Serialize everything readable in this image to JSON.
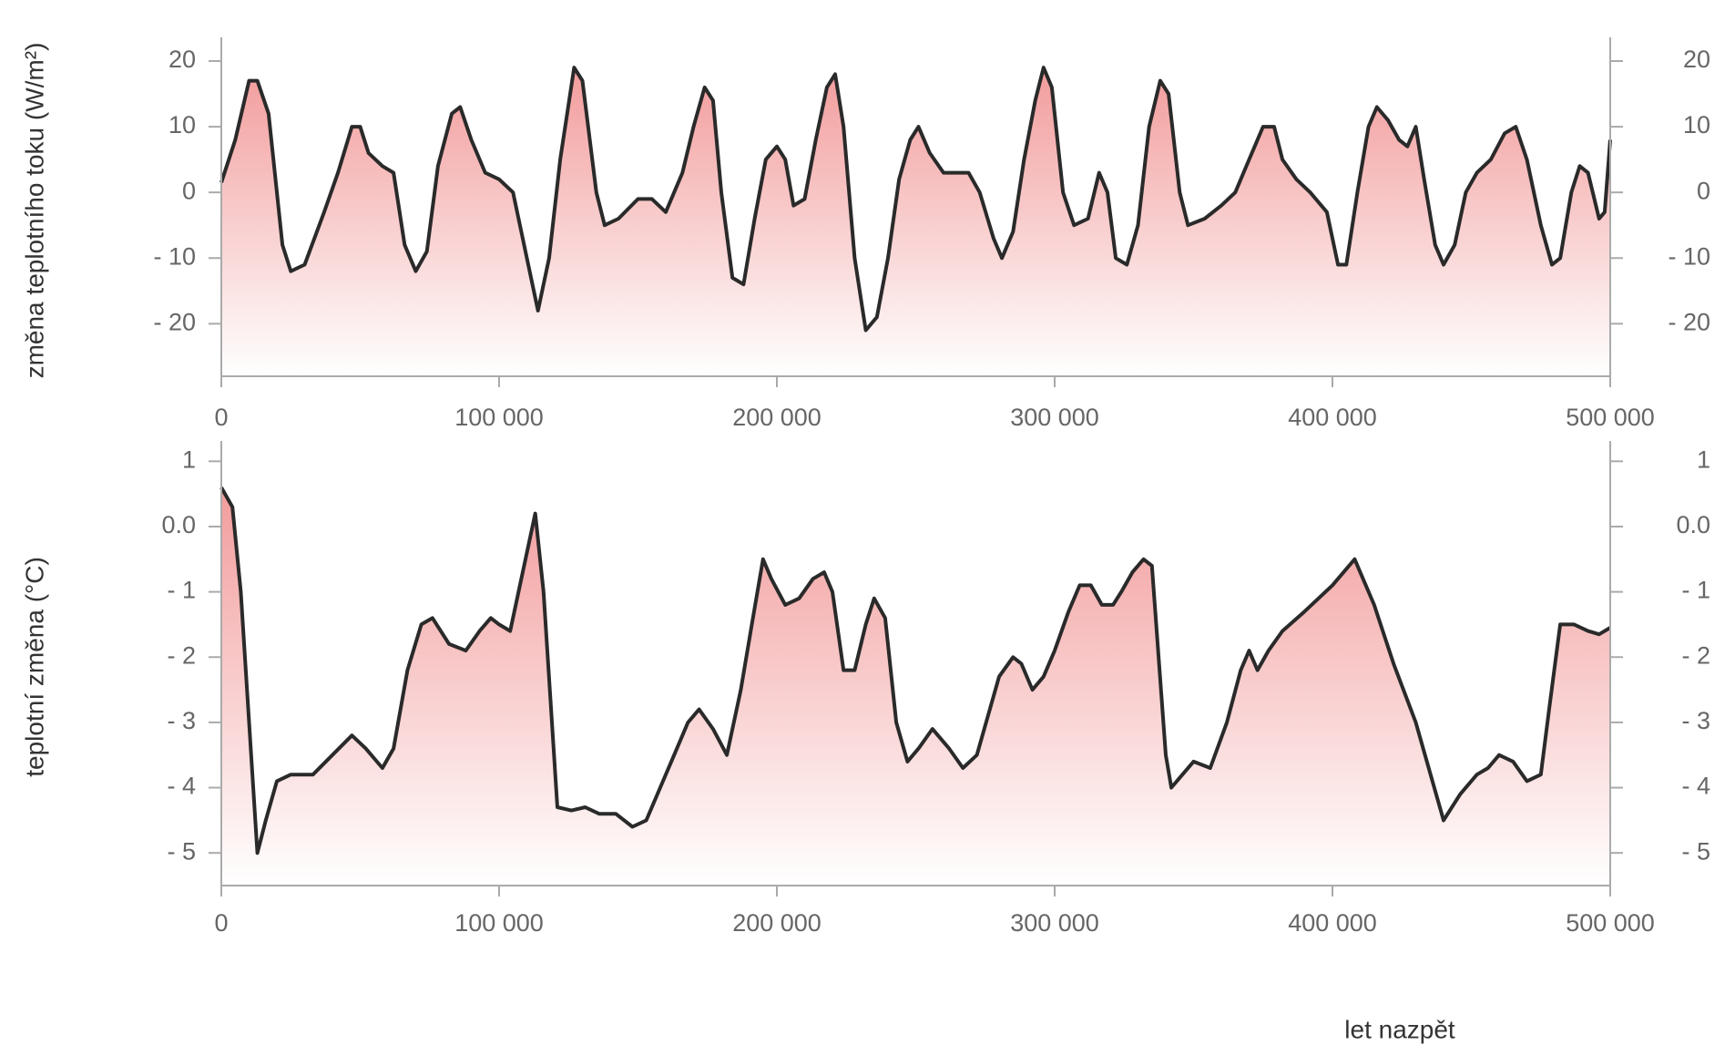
{
  "chart_data": [
    {
      "type": "line",
      "ylabel": "změna teplotního toku (W/m²)",
      "xlim": [
        0,
        500000
      ],
      "ylim": [
        -28,
        22.5
      ],
      "xticks": [
        0,
        {
          "value": 100000,
          "label": "100 000"
        },
        {
          "value": 200000,
          "label": "200 000"
        },
        {
          "value": 300000,
          "label": "300 000"
        },
        {
          "value": 400000,
          "label": "400 000"
        },
        {
          "value": 500000,
          "label": "500 000"
        }
      ],
      "yticks": [
        20,
        10,
        0,
        {
          "value": -10,
          "label": "- 10"
        },
        {
          "value": -20,
          "label": "- 20"
        }
      ],
      "fill_color": "#f08a8a",
      "series": [
        {
          "color": "#2a2a2a",
          "x": [
            0,
            5000,
            10000,
            13000,
            17000,
            22000,
            25000,
            30000,
            37000,
            42000,
            47000,
            50000,
            53000,
            58000,
            62000,
            66000,
            70000,
            74000,
            78000,
            83000,
            86000,
            90000,
            95000,
            100000,
            105000,
            110000,
            114000,
            118000,
            122000,
            127000,
            130000,
            135000,
            138000,
            143000,
            150000,
            155000,
            160000,
            166000,
            170000,
            174000,
            177000,
            180000,
            184000,
            188000,
            192000,
            196000,
            200000,
            203000,
            206000,
            210000,
            214000,
            218000,
            221000,
            224000,
            228000,
            232000,
            236000,
            240000,
            244000,
            248000,
            251000,
            255000,
            260000,
            265000,
            269000,
            273000,
            278000,
            281000,
            285000,
            289000,
            293000,
            296000,
            299000,
            303000,
            307000,
            312000,
            316000,
            319000,
            322000,
            326000,
            330000,
            334000,
            338000,
            341000,
            345000,
            348000,
            354000,
            360000,
            365000,
            370000,
            375000,
            379000,
            382000,
            387000,
            392000,
            398000,
            402000,
            405000,
            409000,
            413000,
            416000,
            420000,
            424000,
            427000,
            430000,
            433000,
            437000,
            440000,
            444000,
            448000,
            452000,
            457000,
            462000,
            466000,
            470000,
            475000,
            479000,
            482000,
            486000,
            489000,
            492000,
            496000,
            498000,
            500000
          ],
          "values": [
            1.5,
            8,
            17,
            17,
            12,
            -8,
            -12,
            -11,
            -3,
            3,
            10,
            10,
            6,
            4,
            3,
            -8,
            -12,
            -9,
            4,
            12,
            13,
            8,
            3,
            2,
            0,
            -10,
            -18,
            -10,
            5,
            19,
            17,
            0,
            -5,
            -4,
            -1,
            -1,
            -3,
            3,
            10,
            16,
            14,
            0,
            -13,
            -14,
            -4,
            5,
            7,
            5,
            -2,
            -1,
            8,
            16,
            18,
            10,
            -10,
            -21,
            -19,
            -10,
            2,
            8,
            10,
            6,
            3,
            3,
            3,
            0,
            -7,
            -10,
            -6,
            5,
            14,
            19,
            16,
            0,
            -5,
            -4,
            3,
            0,
            -10,
            -11,
            -5,
            10,
            17,
            15,
            0,
            -5,
            -4,
            -2,
            0,
            5,
            10,
            10,
            5,
            2,
            0,
            -3,
            -11,
            -11,
            0,
            10,
            13,
            11,
            8,
            7,
            10,
            2,
            -8,
            -11,
            -8,
            0,
            3,
            5,
            9,
            10,
            5,
            -5,
            -11,
            -10,
            0,
            4,
            3,
            -4,
            -3,
            8
          ]
        }
      ]
    },
    {
      "type": "line",
      "ylabel": "teplotní změna (°C)",
      "xlabel": "let nazpět",
      "xlim": [
        0,
        500000
      ],
      "ylim": [
        -5.5,
        1.2
      ],
      "xticks": [
        0,
        {
          "value": 100000,
          "label": "100 000"
        },
        {
          "value": 200000,
          "label": "200 000"
        },
        {
          "value": 300000,
          "label": "300 000"
        },
        {
          "value": 400000,
          "label": "400 000"
        },
        {
          "value": 500000,
          "label": "500 000"
        }
      ],
      "yticks": [
        1,
        {
          "value": 0,
          "label": "0.0"
        },
        {
          "value": -1,
          "label": "- 1"
        },
        {
          "value": -2,
          "label": "- 2"
        },
        {
          "value": -3,
          "label": "- 3"
        },
        {
          "value": -4,
          "label": "- 4"
        },
        {
          "value": -5,
          "label": "- 5"
        }
      ],
      "fill_color": "#f08a8a",
      "series": [
        {
          "color": "#2a2a2a",
          "x": [
            0,
            4000,
            7000,
            10000,
            13000,
            16000,
            20000,
            25000,
            33000,
            40000,
            47000,
            52000,
            58000,
            62000,
            67000,
            72000,
            76000,
            82000,
            88000,
            93000,
            97000,
            100000,
            104000,
            108000,
            113000,
            116000,
            121000,
            126000,
            131000,
            136000,
            142000,
            148000,
            153000,
            158000,
            163000,
            168000,
            172000,
            177000,
            182000,
            187000,
            191000,
            195000,
            198000,
            203000,
            208000,
            213000,
            217000,
            220000,
            224000,
            228000,
            232000,
            235000,
            239000,
            243000,
            247000,
            251000,
            256000,
            262000,
            267000,
            272000,
            276000,
            280000,
            285000,
            288000,
            292000,
            296000,
            300000,
            305000,
            309000,
            313000,
            317000,
            321000,
            324000,
            328000,
            332000,
            335000,
            340000,
            342000,
            346000,
            350000,
            356000,
            362000,
            367000,
            370000,
            373000,
            377000,
            382000,
            390000,
            400000,
            408000,
            415000,
            422000,
            430000,
            436000,
            440000,
            446000,
            452000,
            456000,
            460000,
            465000,
            470000,
            475000,
            478000,
            482000,
            487000,
            492000,
            496000,
            500000
          ],
          "values": [
            0.6,
            0.3,
            -1,
            -3,
            -5,
            -4.5,
            -3.9,
            -3.8,
            -3.8,
            -3.5,
            -3.2,
            -3.4,
            -3.7,
            -3.4,
            -2.2,
            -1.5,
            -1.4,
            -1.8,
            -1.9,
            -1.6,
            -1.4,
            -1.5,
            -1.6,
            -0.8,
            0.2,
            -1,
            -4.3,
            -4.35,
            -4.3,
            -4.4,
            -4.4,
            -4.6,
            -4.5,
            -4,
            -3.5,
            -3,
            -2.8,
            -3.1,
            -3.5,
            -2.5,
            -1.5,
            -0.5,
            -0.8,
            -1.2,
            -1.1,
            -0.8,
            -0.7,
            -1,
            -2.2,
            -2.2,
            -1.5,
            -1.1,
            -1.4,
            -3,
            -3.6,
            -3.4,
            -3.1,
            -3.4,
            -3.7,
            -3.5,
            -2.9,
            -2.3,
            -2,
            -2.1,
            -2.5,
            -2.3,
            -1.9,
            -1.3,
            -0.9,
            -0.9,
            -1.2,
            -1.2,
            -1,
            -0.7,
            -0.5,
            -0.6,
            -3.5,
            -4,
            -3.8,
            -3.6,
            -3.7,
            -3,
            -2.2,
            -1.9,
            -2.2,
            -1.9,
            -1.6,
            -1.3,
            -0.9,
            -0.5,
            -1.2,
            -2.1,
            -3,
            -3.9,
            -4.5,
            -4.1,
            -3.8,
            -3.7,
            -3.5,
            -3.6,
            -3.9,
            -3.8,
            -2.8,
            -1.5,
            -1.5,
            -1.6,
            -1.65,
            -1.55
          ]
        }
      ]
    }
  ]
}
